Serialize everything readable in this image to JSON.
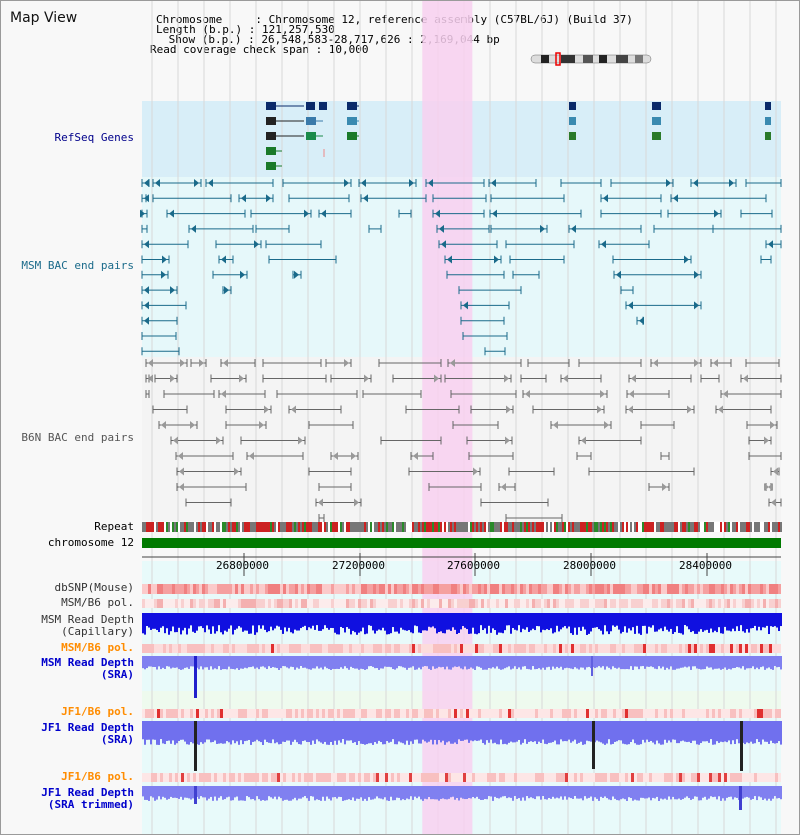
{
  "view": {
    "title": "Map View"
  },
  "info": {
    "chromosome_line": "Chromosome     : Chromosome 12, reference assembly (C57BL/6J) (Build 37)",
    "length_line": "Length (b.p.) : 121,257,530",
    "show_line": " Show (b.p.) : 26,548,583-28,717,626 : 2,169,044 bp",
    "coverage_line": "Read coverage check span : 10,000"
  },
  "region": {
    "start": 26548583,
    "end": 28717626,
    "highlight_start": 27500000,
    "highlight_end": 27670000
  },
  "tracks": {
    "refseq": {
      "label": "RefSeq Genes",
      "color": "#00008b"
    },
    "msm_bac": {
      "label": "MSM BAC end pairs",
      "color": "#1a6a8a"
    },
    "b6n_bac": {
      "label": "B6N BAC end pairs",
      "color": "#555555"
    },
    "repeat": {
      "label": "Repeat"
    },
    "chromosome": {
      "label": "chromosome 12",
      "color": "#007a00"
    },
    "dbsnp": {
      "label": "dbSNP(Mouse)"
    },
    "msm_b6_pol_1": {
      "label": "MSM/B6 pol."
    },
    "msm_depth_cap": {
      "label_1": "MSM Read Depth",
      "label_2": "(Capillary)"
    },
    "msm_b6_pol_2": {
      "label": "MSM/B6 pol.",
      "color": "#ff8c00"
    },
    "msm_depth_sra": {
      "label_1": "MSM Read Depth",
      "label_2": "(SRA)",
      "color": "#0000cc"
    },
    "jf1_b6_pol_1": {
      "label": "JF1/B6 pol.",
      "color": "#ff8c00"
    },
    "jf1_depth_sra": {
      "label_1": "JF1 Read Depth",
      "label_2": "(SRA)",
      "color": "#0000cc"
    },
    "jf1_b6_pol_2": {
      "label": "JF1/B6 pol.",
      "color": "#ff8c00"
    },
    "jf1_depth_trim": {
      "label_1": "JF1 Read Depth",
      "label_2": "(SRA trimmed)",
      "color": "#0000cc"
    }
  },
  "axis": {
    "ticks": [
      "26800000",
      "27200000",
      "27600000",
      "28000000",
      "28400000"
    ]
  }
}
